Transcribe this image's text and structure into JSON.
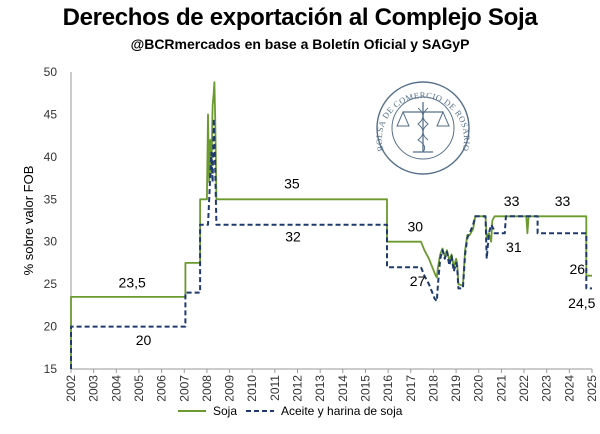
{
  "header": {
    "title": "Derechos de exportación al Complejo Soja",
    "subtitle": "@BCRmercados en base a Boletín Oficial y SAGyP"
  },
  "seal": {
    "text": "BOLSA DE COMERCIO DE ROSARIO"
  },
  "chart_data": {
    "type": "line",
    "ylabel": "% sobre valor FOB",
    "xlabel": "",
    "ylim": [
      15,
      50
    ],
    "xlim": [
      2002,
      2025
    ],
    "yticks": [
      15,
      20,
      25,
      30,
      35,
      40,
      45,
      50
    ],
    "xticks": [
      "2002",
      "2003",
      "2004",
      "2005",
      "2006",
      "2007",
      "2008",
      "2009",
      "2010",
      "2011",
      "2012",
      "2013",
      "2014",
      "2015",
      "2016",
      "2017",
      "2018",
      "2019",
      "2020",
      "2021",
      "2022",
      "2023",
      "2024",
      "2025"
    ],
    "grid": false,
    "legend": "bottom",
    "series": [
      {
        "name": "Soja",
        "color": "#6b9a2f",
        "dash": false,
        "points": [
          [
            2002.0,
            15
          ],
          [
            2002.0,
            23.5
          ],
          [
            2007.05,
            23.5
          ],
          [
            2007.05,
            27.5
          ],
          [
            2007.7,
            27.5
          ],
          [
            2007.7,
            35
          ],
          [
            2008.0,
            35
          ],
          [
            2008.05,
            45
          ],
          [
            2008.1,
            37
          ],
          [
            2008.15,
            42
          ],
          [
            2008.2,
            38
          ],
          [
            2008.25,
            46
          ],
          [
            2008.3,
            47.5
          ],
          [
            2008.33,
            48.8
          ],
          [
            2008.37,
            44
          ],
          [
            2008.42,
            35
          ],
          [
            2015.95,
            35
          ],
          [
            2015.95,
            30
          ],
          [
            2017.45,
            30
          ],
          [
            2017.6,
            29
          ],
          [
            2017.8,
            28
          ],
          [
            2017.95,
            27
          ],
          [
            2018.1,
            26
          ],
          [
            2018.15,
            25.8
          ],
          [
            2018.2,
            27
          ],
          [
            2018.3,
            28.5
          ],
          [
            2018.4,
            29.2
          ],
          [
            2018.5,
            28.3
          ],
          [
            2018.6,
            29
          ],
          [
            2018.7,
            27.8
          ],
          [
            2018.8,
            28.5
          ],
          [
            2018.9,
            27
          ],
          [
            2019.0,
            28
          ],
          [
            2019.05,
            27.5
          ],
          [
            2019.1,
            25
          ],
          [
            2019.3,
            24.8
          ],
          [
            2019.4,
            29
          ],
          [
            2019.5,
            30.8
          ],
          [
            2019.6,
            30.8
          ],
          [
            2019.75,
            31.5
          ],
          [
            2019.85,
            33
          ],
          [
            2020.3,
            33
          ],
          [
            2020.35,
            30.5
          ],
          [
            2020.45,
            31
          ],
          [
            2020.55,
            30
          ],
          [
            2020.6,
            32.5
          ],
          [
            2020.7,
            33
          ],
          [
            2022.1,
            33
          ],
          [
            2022.15,
            31
          ],
          [
            2022.2,
            33
          ],
          [
            2024.75,
            33
          ],
          [
            2024.75,
            26
          ],
          [
            2025.0,
            26
          ]
        ]
      },
      {
        "name": "Aceite y harina de soja",
        "color": "#1f3a6e",
        "dash": true,
        "points": [
          [
            2002.0,
            15
          ],
          [
            2002.0,
            20
          ],
          [
            2007.05,
            20
          ],
          [
            2007.05,
            24
          ],
          [
            2007.7,
            24
          ],
          [
            2007.7,
            32
          ],
          [
            2008.05,
            32
          ],
          [
            2008.1,
            35
          ],
          [
            2008.15,
            38
          ],
          [
            2008.2,
            40.5
          ],
          [
            2008.25,
            37
          ],
          [
            2008.3,
            44.5
          ],
          [
            2008.35,
            41
          ],
          [
            2008.42,
            32
          ],
          [
            2015.95,
            32
          ],
          [
            2015.95,
            27
          ],
          [
            2017.45,
            27
          ],
          [
            2017.6,
            26
          ],
          [
            2017.8,
            25
          ],
          [
            2017.95,
            24
          ],
          [
            2018.05,
            23.3
          ],
          [
            2018.15,
            23
          ],
          [
            2018.2,
            25
          ],
          [
            2018.3,
            28
          ],
          [
            2018.4,
            29
          ],
          [
            2018.5,
            28
          ],
          [
            2018.6,
            28.8
          ],
          [
            2018.7,
            27.2
          ],
          [
            2018.8,
            28.3
          ],
          [
            2018.9,
            26.5
          ],
          [
            2019.0,
            27.5
          ],
          [
            2019.05,
            27
          ],
          [
            2019.1,
            24.5
          ],
          [
            2019.3,
            24.5
          ],
          [
            2019.4,
            28.5
          ],
          [
            2019.5,
            30.5
          ],
          [
            2019.6,
            31
          ],
          [
            2019.75,
            32
          ],
          [
            2019.85,
            33
          ],
          [
            2020.3,
            33
          ],
          [
            2020.35,
            28
          ],
          [
            2020.45,
            31
          ],
          [
            2020.55,
            32
          ],
          [
            2020.65,
            31.5
          ],
          [
            2020.7,
            31
          ],
          [
            2021.15,
            31
          ],
          [
            2021.2,
            33
          ],
          [
            2022.6,
            33
          ],
          [
            2022.6,
            31
          ],
          [
            2024.75,
            31
          ],
          [
            2024.75,
            24.5
          ],
          [
            2025.0,
            24.5
          ]
        ]
      }
    ],
    "annotations": [
      {
        "text": "23,5",
        "x": 2004.7,
        "y": 24.6
      },
      {
        "text": "20",
        "x": 2005.2,
        "y": 17.8
      },
      {
        "text": "35",
        "x": 2011.75,
        "y": 36.3
      },
      {
        "text": "32",
        "x": 2011.8,
        "y": 30.0
      },
      {
        "text": "30",
        "x": 2017.2,
        "y": 31.2
      },
      {
        "text": "27",
        "x": 2017.3,
        "y": 24.8
      },
      {
        "text": "33",
        "x": 2021.45,
        "y": 34.2
      },
      {
        "text": "31",
        "x": 2021.55,
        "y": 28.8
      },
      {
        "text": "33",
        "x": 2023.7,
        "y": 34.2
      },
      {
        "text": "26",
        "x": 2024.35,
        "y": 26.2
      },
      {
        "text": "24,5",
        "x": 2024.55,
        "y": 22.2
      }
    ]
  }
}
